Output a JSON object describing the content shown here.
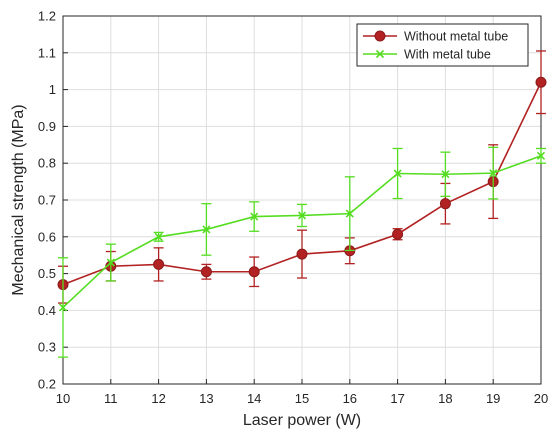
{
  "chart_data": {
    "type": "line",
    "xlabel": "Laser power (W)",
    "ylabel": "Mechanical strength (MPa)",
    "xlim": [
      10,
      20
    ],
    "ylim": [
      0.2,
      1.2
    ],
    "x_ticks": [
      "10",
      "11",
      "12",
      "13",
      "14",
      "15",
      "16",
      "17",
      "18",
      "19",
      "20"
    ],
    "y_ticks": [
      "0.2",
      "0.3",
      "0.4",
      "0.5",
      "0.6",
      "0.7",
      "0.8",
      "0.9",
      "1",
      "1.1",
      "1.2"
    ],
    "grid": true,
    "legend_position": "top-right",
    "series": [
      {
        "name": "Without metal tube",
        "color": "#b22222",
        "marker": "circle",
        "x": [
          10,
          11,
          12,
          13,
          14,
          15,
          16,
          17,
          18,
          19,
          20
        ],
        "y": [
          0.47,
          0.52,
          0.525,
          0.505,
          0.505,
          0.553,
          0.562,
          0.607,
          0.69,
          0.75,
          1.02
        ],
        "err": [
          0.05,
          0.04,
          0.045,
          0.02,
          0.04,
          0.065,
          0.035,
          0.015,
          0.055,
          0.1,
          0.085
        ]
      },
      {
        "name": "With metal tube",
        "color": "#55dd22",
        "marker": "x",
        "x": [
          10,
          11,
          12,
          13,
          14,
          15,
          16,
          17,
          18,
          19,
          20
        ],
        "y": [
          0.408,
          0.53,
          0.6,
          0.62,
          0.655,
          0.658,
          0.663,
          0.772,
          0.77,
          0.773,
          0.82
        ],
        "err": [
          0.135,
          0.05,
          0.012,
          0.07,
          0.04,
          0.03,
          0.1,
          0.068,
          0.06,
          0.07,
          0.02
        ]
      }
    ]
  }
}
